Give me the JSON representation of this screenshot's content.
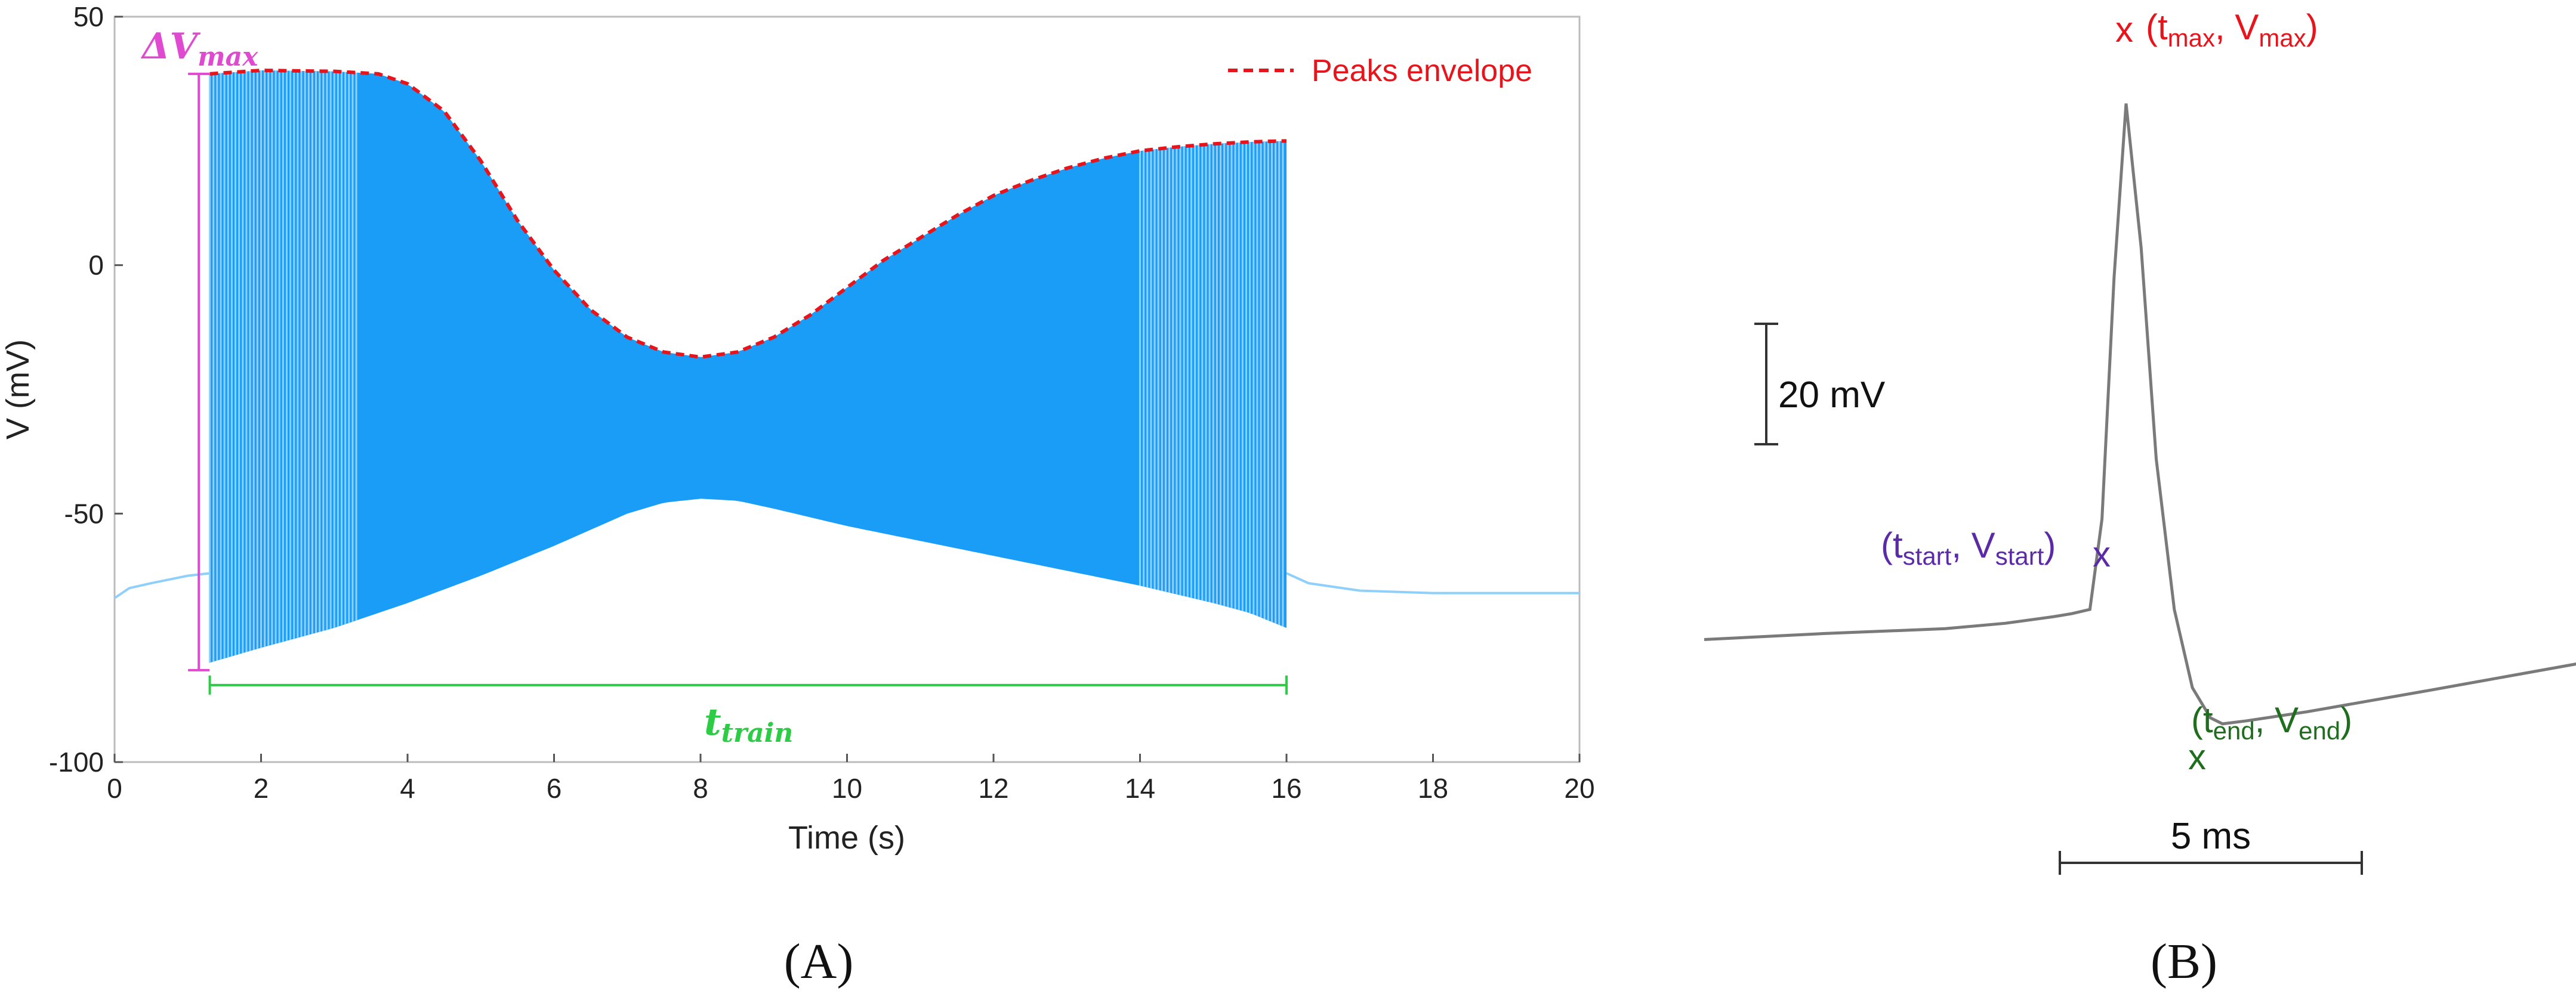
{
  "chart_data": [
    {
      "panel": "(A)",
      "type": "line",
      "xlabel": "Time (s)",
      "ylabel": "V (mV)",
      "xlim": [
        0,
        20
      ],
      "ylim": [
        -100,
        50
      ],
      "xticks": [
        0,
        2,
        4,
        6,
        8,
        10,
        12,
        14,
        16,
        18,
        20
      ],
      "yticks": [
        -100,
        -50,
        0,
        50
      ],
      "legend": {
        "position": "top-right",
        "entries": [
          "Peaks envelope"
        ]
      },
      "colors": {
        "trace": "#1a9df7",
        "trace_light": "#8fd0fb",
        "envelope": "#e8141c",
        "delta_v": "#e04ad0",
        "t_train": "#2ccc44"
      },
      "series": [
        {
          "name": "Peaks envelope",
          "style": "dashed",
          "x": [
            1.3,
            2.0,
            3.0,
            3.6,
            4.0,
            4.5,
            5.0,
            5.5,
            6.0,
            6.5,
            7.0,
            7.5,
            8.0,
            8.5,
            9.0,
            9.5,
            10.0,
            10.5,
            11.0,
            11.5,
            12.0,
            12.5,
            13.0,
            13.5,
            14.0,
            14.5,
            15.0,
            15.5,
            16.0
          ],
          "y": [
            38.5,
            39.2,
            39.0,
            38.5,
            36.5,
            31.0,
            21.0,
            9.0,
            -1.0,
            -9.0,
            -14.5,
            -17.5,
            -18.5,
            -17.5,
            -14.5,
            -10.0,
            -4.5,
            1.0,
            5.5,
            10.0,
            14.0,
            17.0,
            19.5,
            21.5,
            23.0,
            23.8,
            24.4,
            24.8,
            25.0
          ]
        },
        {
          "name": "",
          "style": "trough envelope",
          "x": [
            1.3,
            2.0,
            3.0,
            4.0,
            5.0,
            6.0,
            7.0,
            7.5,
            8.0,
            8.5,
            9.0,
            10.0,
            11.0,
            12.0,
            13.0,
            14.0,
            15.0,
            15.5,
            16.0
          ],
          "y": [
            -80.0,
            -77.0,
            -73.0,
            -68.0,
            -62.5,
            -56.5,
            -50.0,
            -47.8,
            -47.0,
            -47.4,
            -49.0,
            -52.5,
            -55.5,
            -58.5,
            -61.5,
            -64.5,
            -68.0,
            -70.0,
            -73.0
          ]
        },
        {
          "name": "",
          "style": "baseline",
          "x": [
            0.0,
            0.2,
            0.5,
            1.0,
            1.3,
            16.0,
            16.3,
            17.0,
            18.0,
            20.0
          ],
          "y": [
            -67.0,
            -65.0,
            -64.0,
            -62.5,
            -62.0,
            -62.0,
            -64.0,
            -65.5,
            -66.0,
            -66.0
          ]
        }
      ],
      "annotations": [
        {
          "label": "ΔV_max",
          "x": 1.15,
          "y_from": -81.5,
          "y_to": 38.5
        },
        {
          "label": "t_train",
          "x_from": 1.3,
          "x_to": 16.0,
          "y": -84.5
        }
      ]
    },
    {
      "panel": "(B)",
      "type": "line",
      "scale_bars": {
        "vertical": "20 mV",
        "horizontal": "5 ms"
      },
      "points": [
        {
          "label": "(t_max, V_max)",
          "t_ms": 0.0,
          "v": 44.0,
          "color": "#e8141c"
        },
        {
          "label": "(t_start, V_start)",
          "t_ms": -0.6,
          "v": -40.0,
          "color": "#5b2aa6"
        },
        {
          "label": "(t_end, V_end)",
          "t_ms": 1.6,
          "v": -59.0,
          "color": "#1e6e1e"
        }
      ],
      "series": [
        {
          "name": "",
          "t_ms": [
            -7.0,
            -5.0,
            -3.0,
            -2.0,
            -1.2,
            -0.9,
            -0.6,
            -0.4,
            -0.2,
            0.0,
            0.25,
            0.5,
            0.8,
            1.1,
            1.4,
            1.6,
            2.0,
            3.0,
            5.0,
            7.5
          ],
          "v": [
            -45.0,
            -44.0,
            -43.2,
            -42.3,
            -41.2,
            -40.7,
            -40.0,
            -25.0,
            15.0,
            44.0,
            20.0,
            -15.0,
            -40.0,
            -53.0,
            -58.0,
            -59.0,
            -58.5,
            -57.0,
            -53.5,
            -49.0
          ]
        }
      ]
    }
  ],
  "text": {
    "xlabel": "Time (s)",
    "ylabel": "V (mV)",
    "legend": "Peaks envelope",
    "panelA": "(A)",
    "panelB": "(B)",
    "scaleV": "20 mV",
    "scaleT": "5 ms"
  }
}
